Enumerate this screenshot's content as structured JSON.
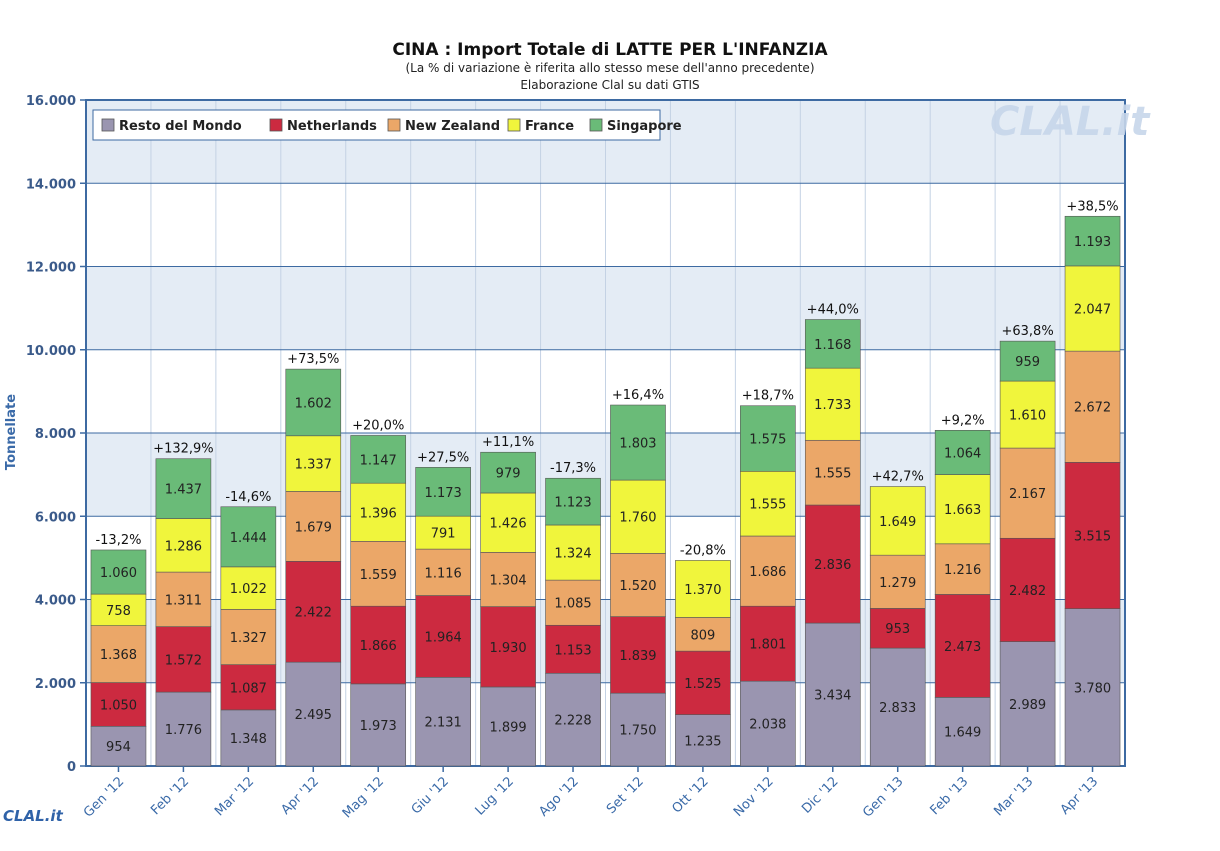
{
  "chart_data": {
    "type": "bar",
    "stacked": true,
    "title": "CINA : Import Totale di LATTE PER L'INFANZIA",
    "subtitle": "(La % di variazione è riferita allo stesso mese dell'anno precedente)",
    "source": "Elaborazione Clal su dati GTIS",
    "ylabel": "Tonnellate",
    "ylim": [
      0,
      16000
    ],
    "yticks": [
      0,
      2000,
      4000,
      6000,
      8000,
      10000,
      12000,
      14000,
      16000
    ],
    "ytick_labels": [
      "0",
      "2.000",
      "4.000",
      "6.000",
      "8.000",
      "10.000",
      "12.000",
      "14.000",
      "16.000"
    ],
    "grid": true,
    "legend_position": "top-left",
    "categories": [
      "Gen '12",
      "Feb '12",
      "Mar '12",
      "Apr '12",
      "Mag '12",
      "Giu '12",
      "Lug '12",
      "Ago '12",
      "Set '12",
      "Ott '12",
      "Nov '12",
      "Dic '12",
      "Gen '13",
      "Feb '13",
      "Mar '13",
      "Apr '13"
    ],
    "series": [
      {
        "name": "Resto del Mondo",
        "color": "#9a95b0",
        "values": [
          954,
          1776,
          1348,
          2495,
          1973,
          2131,
          1899,
          2228,
          1750,
          1235,
          2038,
          3434,
          2833,
          1649,
          2989,
          3780
        ],
        "labels": [
          "954",
          "1.776",
          "1.348",
          "2.495",
          "1.973",
          "2.131",
          "1.899",
          "2.228",
          "1.750",
          "1.235",
          "2.038",
          "3.434",
          "2.833",
          "1.649",
          "2.989",
          "3.780"
        ]
      },
      {
        "name": "Netherlands",
        "color": "#cc2a40",
        "values": [
          1050,
          1572,
          1087,
          2422,
          1866,
          1964,
          1930,
          1153,
          1839,
          1525,
          1801,
          2836,
          953,
          2473,
          2482,
          3515
        ],
        "labels": [
          "1.050",
          "1.572",
          "1.087",
          "2.422",
          "1.866",
          "1.964",
          "1.930",
          "1.153",
          "1.839",
          "1.525",
          "1.801",
          "2.836",
          "953",
          "2.473",
          "2.482",
          "3.515"
        ]
      },
      {
        "name": "New Zealand",
        "color": "#eba768",
        "values": [
          1368,
          1311,
          1327,
          1679,
          1559,
          1116,
          1304,
          1085,
          1520,
          809,
          1686,
          1555,
          1279,
          1216,
          2167,
          2672
        ],
        "labels": [
          "1.368",
          "1.311",
          "1.327",
          "1.679",
          "1.559",
          "1.116",
          "1.304",
          "1.085",
          "1.520",
          "809",
          "1.686",
          "1.555",
          "1.279",
          "1.216",
          "2.167",
          "2.672"
        ]
      },
      {
        "name": "France",
        "color": "#f0f53c",
        "values": [
          758,
          1286,
          1022,
          1337,
          1396,
          791,
          1426,
          1324,
          1760,
          1370,
          1555,
          1733,
          1649,
          1663,
          1610,
          2047
        ],
        "labels": [
          "758",
          "1.286",
          "1.022",
          "1.337",
          "1.396",
          "791",
          "1.426",
          "1.324",
          "1.760",
          "1.370",
          "1.555",
          "1.733",
          "1.649",
          "1.663",
          "1.610",
          "2.047"
        ]
      },
      {
        "name": "Singapore",
        "color": "#6abb78",
        "values": [
          1060,
          1437,
          1444,
          1602,
          1147,
          1173,
          979,
          1123,
          1803,
          0,
          1575,
          1168,
          0,
          1064,
          959,
          1193
        ],
        "labels": [
          "1.060",
          "1.437",
          "1.444",
          "1.602",
          "1.147",
          "1.173",
          "979",
          "1.123",
          "1.803",
          "",
          "1.575",
          "1.168",
          "",
          "1.064",
          "959",
          "1.193"
        ]
      }
    ],
    "change_labels": [
      "-13,2%",
      "+132,9%",
      "-14,6%",
      "+73,5%",
      "+20,0%",
      "+27,5%",
      "+11,1%",
      "-17,3%",
      "+16,4%",
      "-20,8%",
      "+18,7%",
      "+44,0%",
      "+42,7%",
      "+9,2%",
      "+63,8%",
      "+38,5%"
    ],
    "watermark": "CLAL.it",
    "logo": "CLAL.it"
  }
}
